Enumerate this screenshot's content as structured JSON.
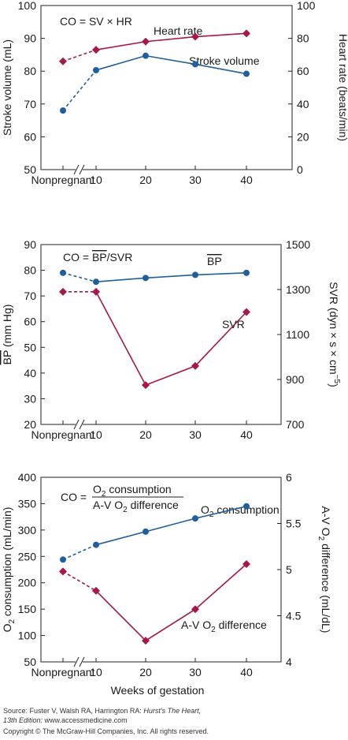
{
  "chart_data": [
    {
      "type": "line",
      "x": [
        "Nonpregnant",
        "10",
        "20",
        "30",
        "40"
      ],
      "annotation": "CO = SV × HR",
      "ylabel_left": "Stroke volume (mL)",
      "ylabel_right": "Heart rate (beats/min)",
      "ylim_left": [
        50,
        100
      ],
      "ylim_right": [
        0,
        100
      ],
      "yticks_left": [
        "50",
        "60",
        "70",
        "80",
        "90",
        "100"
      ],
      "yticks_right": [
        "0",
        "20",
        "40",
        "60",
        "80",
        "100"
      ],
      "grid": false,
      "series": [
        {
          "name": "Heart rate",
          "axis": "right",
          "marker": "diamond",
          "color": "#a8174a",
          "values": [
            66,
            73,
            78,
            81,
            83
          ]
        },
        {
          "name": "Stroke volume",
          "axis": "left",
          "marker": "circle",
          "color": "#1f5f9e",
          "values": [
            68,
            80.3,
            84.7,
            82.1,
            79.2
          ]
        }
      ]
    },
    {
      "type": "line",
      "x": [
        "Nonpregnant",
        "10",
        "20",
        "30",
        "40"
      ],
      "annotation": "CO = BP/SVR",
      "ylabel_left": "BP (mm Hg)",
      "ylabel_right": "SVR (dyn × s × cm−5)",
      "ylim_left": [
        20,
        90
      ],
      "ylim_right": [
        700,
        1500
      ],
      "yticks_left": [
        "20",
        "30",
        "40",
        "50",
        "60",
        "70",
        "80",
        "90"
      ],
      "yticks_right": [
        "700",
        "900",
        "1100",
        "1300",
        "1500"
      ],
      "grid": false,
      "series": [
        {
          "name": "BP",
          "axis": "left",
          "marker": "circle",
          "color": "#1f5f9e",
          "values": [
            79,
            75.5,
            77,
            78.2,
            79
          ]
        },
        {
          "name": "SVR",
          "axis": "right",
          "marker": "diamond",
          "color": "#a8174a",
          "values": [
            1290,
            1290,
            875,
            960,
            1200
          ]
        }
      ]
    },
    {
      "type": "line",
      "x": [
        "Nonpregnant",
        "10",
        "20",
        "30",
        "40"
      ],
      "annotation": "CO = O2 consumption / A-V O2 difference",
      "xlabel": "Weeks of gestation",
      "ylabel_left": "O2 consumption (mL/min)",
      "ylabel_right": "A-V O2 difference (mL/dL)",
      "ylim_left": [
        50,
        400
      ],
      "ylim_right": [
        4,
        6
      ],
      "yticks_left": [
        "50",
        "100",
        "150",
        "200",
        "250",
        "300",
        "350",
        "400"
      ],
      "yticks_right": [
        "4",
        "4.5",
        "5",
        "5.5",
        "6"
      ],
      "grid": false,
      "series": [
        {
          "name": "O2 consumption",
          "axis": "left",
          "marker": "circle",
          "color": "#1f5f9e",
          "values": [
            244,
            272,
            297,
            322,
            345
          ]
        },
        {
          "name": "A-V O2 difference",
          "axis": "right",
          "marker": "diamond",
          "color": "#a8174a",
          "values": [
            4.98,
            4.77,
            4.23,
            4.57,
            5.06
          ]
        }
      ]
    }
  ],
  "labels": {
    "hr": "Heart rate",
    "sv": "Stroke volume",
    "co1": "CO = SV × HR",
    "co2_pre": "CO = ",
    "co2_bp": "BP",
    "co2_post": "/SVR",
    "bp": "BP",
    "svr": "SVR",
    "co3_pre": "CO =",
    "co3_num": "consumption",
    "co3_den": "difference",
    "o2_cons": "consumption",
    "avo2": "difference"
  },
  "source": {
    "line1_pre": "Source: Fuster V, Walsh RA, Harrington RA: ",
    "line1_title": "Hurst's The Heart,",
    "line2_edition": "13th Edition:",
    "line2_url": " www.accessmedicine.com",
    "line3": "Copyright © The McGraw-Hill Companies, Inc. All rights reserved."
  }
}
